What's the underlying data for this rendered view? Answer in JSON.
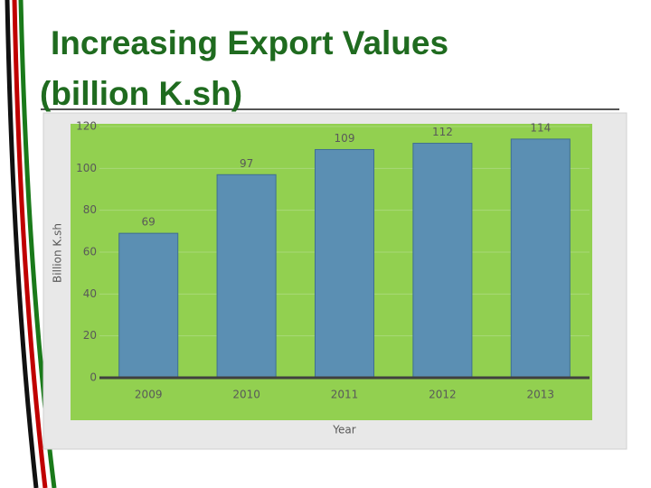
{
  "chart_data": {
    "type": "bar",
    "title": "Increasing Export Values (billion K.sh)",
    "categories": [
      "2009",
      "2010",
      "2011",
      "2012",
      "2013"
    ],
    "values": [
      69,
      97,
      109,
      112,
      114
    ],
    "color": "#5b8fb3",
    "x_label": "Year",
    "y_label": "Billion K.sh",
    "ylim": [
      0,
      120
    ],
    "yticks": [
      0,
      20,
      40,
      60,
      80,
      100,
      120
    ],
    "grid": true
  }
}
